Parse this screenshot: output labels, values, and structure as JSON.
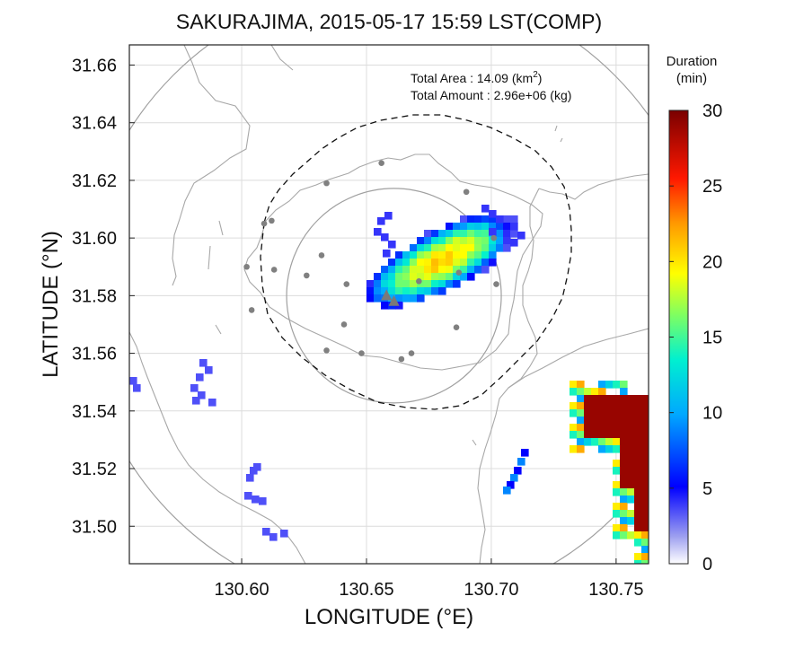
{
  "title": "SAKURAJIMA, 2015-05-17 15:59 LST(COMP)",
  "xlabel": "LONGITUDE (°E)",
  "ylabel": "LATITUDE (°N)",
  "stats": {
    "area_label": "Total Area   : 14.09 (km",
    "area_sup": "2",
    "area_close": ")",
    "amount_label": "Total Amount : 2.96e+06 (kg)"
  },
  "colorbar": {
    "title_line1": "Duration",
    "title_line2": "(min)",
    "ticks": [
      "0",
      "5",
      "10",
      "15",
      "20",
      "25",
      "30"
    ],
    "min": 0,
    "max": 30
  },
  "axes": {
    "xlim": [
      130.555,
      130.763
    ],
    "ylim": [
      31.487,
      31.667
    ],
    "xticks": [
      130.6,
      130.65,
      130.7,
      130.75
    ],
    "xtick_labels": [
      "130.60",
      "130.65",
      "130.70",
      "130.75"
    ],
    "yticks": [
      31.5,
      31.52,
      31.54,
      31.56,
      31.58,
      31.6,
      31.62,
      31.64,
      31.66
    ],
    "ytick_labels": [
      "31.50",
      "31.52",
      "31.54",
      "31.56",
      "31.58",
      "31.60",
      "31.62",
      "31.64",
      "31.66"
    ],
    "grid": true
  },
  "map": {
    "vent": {
      "lon": 130.661,
      "lat": 31.58
    },
    "rings_deg_lon": [
      0.043,
      0.125
    ],
    "stations": [
      [
        130.656,
        31.626
      ],
      [
        130.634,
        31.619
      ],
      [
        130.69,
        31.616
      ],
      [
        130.612,
        31.606
      ],
      [
        130.609,
        31.605
      ],
      [
        130.701,
        31.6
      ],
      [
        130.602,
        31.59
      ],
      [
        130.613,
        31.589
      ],
      [
        130.632,
        31.594
      ],
      [
        130.626,
        31.587
      ],
      [
        130.642,
        31.584
      ],
      [
        130.687,
        31.588
      ],
      [
        130.671,
        31.585
      ],
      [
        130.702,
        31.584
      ],
      [
        130.604,
        31.575
      ],
      [
        130.641,
        31.57
      ],
      [
        130.686,
        31.569
      ],
      [
        130.634,
        31.561
      ],
      [
        130.648,
        31.56
      ],
      [
        130.668,
        31.56
      ],
      [
        130.664,
        31.558
      ]
    ],
    "triangles": [
      [
        130.658,
        31.58
      ],
      [
        130.661,
        31.578
      ]
    ]
  }
}
